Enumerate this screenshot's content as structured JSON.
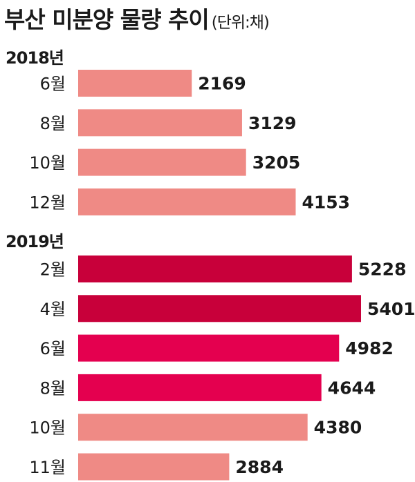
{
  "header": {
    "title": "부산 미분양 물량 추이",
    "unit": "(단위:채)"
  },
  "colors": {
    "bar_2018": "#ef8a85",
    "bar_2019_dark": "#c8003a",
    "bar_2019_bright": "#e4004f",
    "bar_2019_light": "#ef8a85",
    "text": "#1a1a1a"
  },
  "chart_data": {
    "type": "bar",
    "orientation": "horizontal",
    "xlim": [
      0,
      5401
    ],
    "groups": [
      {
        "label": "2018년",
        "categories": [
          "6월",
          "8월",
          "10월",
          "12월"
        ],
        "values": [
          2169,
          3129,
          3205,
          4153
        ],
        "colors": [
          "#ef8a85",
          "#ef8a85",
          "#ef8a85",
          "#ef8a85"
        ]
      },
      {
        "label": "2019년",
        "categories": [
          "2월",
          "4월",
          "6월",
          "8월",
          "10월",
          "11월"
        ],
        "values": [
          5228,
          5401,
          4982,
          4644,
          4380,
          2884
        ],
        "colors": [
          "#c8003a",
          "#c8003a",
          "#e4004f",
          "#e4004f",
          "#ef8a85",
          "#ef8a85"
        ]
      }
    ]
  }
}
